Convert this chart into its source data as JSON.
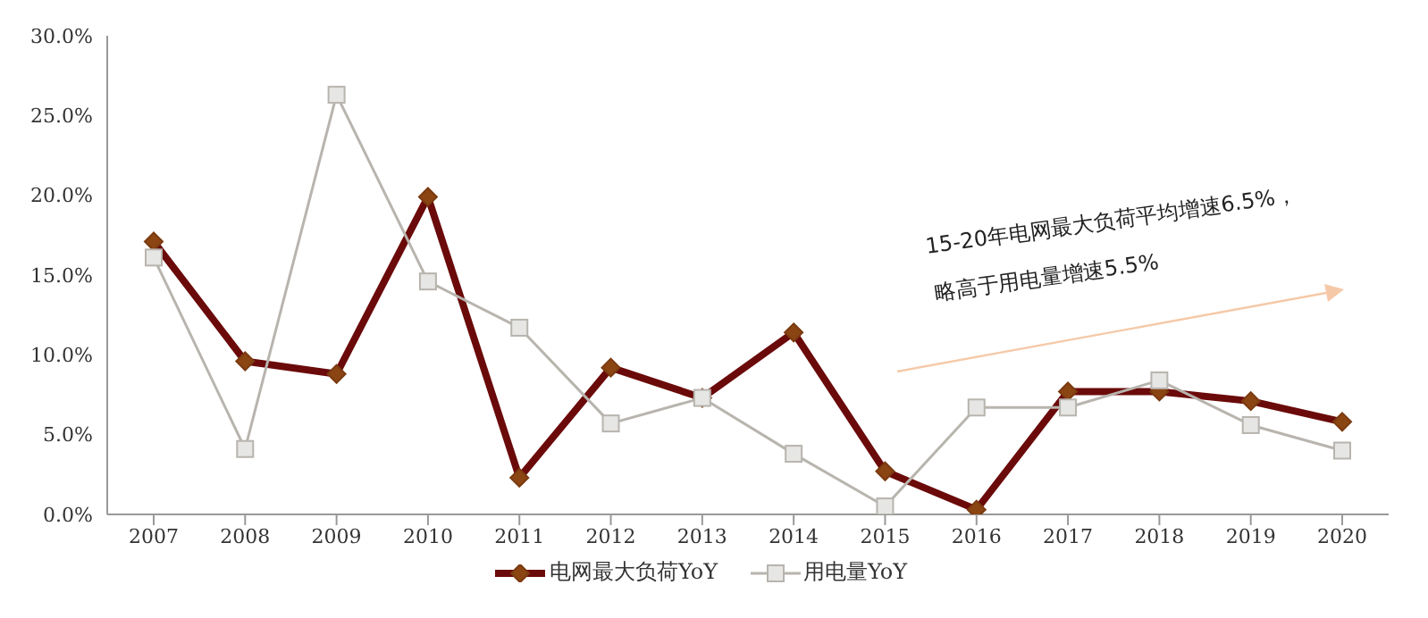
{
  "chart_data": {
    "type": "line",
    "categories": [
      "2007",
      "2008",
      "2009",
      "2010",
      "2011",
      "2012",
      "2013",
      "2014",
      "2015",
      "2016",
      "2017",
      "2018",
      "2019",
      "2020"
    ],
    "series": [
      {
        "name": "电网最大负荷YoY",
        "color": "#6b0a0a",
        "marker": "diamond",
        "values": [
          17.1,
          9.6,
          8.8,
          19.9,
          2.3,
          9.2,
          7.3,
          11.4,
          2.7,
          0.3,
          7.7,
          7.7,
          7.1,
          5.8
        ]
      },
      {
        "name": "用电量YoY",
        "color": "#b8b4ae",
        "marker": "square",
        "values": [
          16.1,
          4.1,
          26.3,
          14.6,
          11.7,
          5.7,
          7.3,
          3.8,
          0.5,
          6.7,
          6.7,
          8.4,
          5.6,
          4.0
        ]
      }
    ],
    "ylim": [
      0,
      30
    ],
    "yticks": [
      {
        "value": 0,
        "label": "0.0%"
      },
      {
        "value": 5,
        "label": "5.0%"
      },
      {
        "value": 10,
        "label": "10.0%"
      },
      {
        "value": 15,
        "label": "15.0%"
      },
      {
        "value": 20,
        "label": "20.0%"
      },
      {
        "value": 25,
        "label": "25.0%"
      },
      {
        "value": 30,
        "label": "30.0%"
      }
    ],
    "grid": false,
    "legend": "bottom",
    "annotations": [
      "15-20年电网最大负荷平均增速6.5%，",
      "略高于用电量增速5.5%"
    ]
  }
}
